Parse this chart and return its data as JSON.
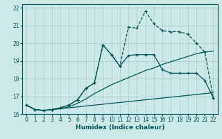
{
  "xlabel": "Humidex (Indice chaleur)",
  "bg_color": "#cce8e8",
  "grid_color": "#aacccc",
  "line_color": "#005555",
  "xlim": [
    -0.5,
    22.5
  ],
  "ylim": [
    16,
    22.2
  ],
  "xticks": [
    0,
    1,
    2,
    3,
    4,
    5,
    6,
    7,
    8,
    9,
    10,
    11,
    12,
    13,
    14,
    15,
    16,
    17,
    18,
    19,
    20,
    21,
    22
  ],
  "yticks": [
    16,
    17,
    18,
    19,
    20,
    21,
    22
  ],
  "series": [
    {
      "x": [
        0,
        1,
        2,
        3,
        4,
        5,
        6,
        7,
        8,
        9,
        10,
        11,
        12,
        13,
        14,
        15,
        16,
        17,
        18,
        19,
        20,
        21,
        22
      ],
      "y": [
        16.5,
        16.25,
        16.2,
        16.25,
        16.3,
        16.35,
        16.4,
        16.45,
        16.5,
        16.55,
        16.6,
        16.65,
        16.7,
        16.75,
        16.8,
        16.85,
        16.9,
        16.95,
        17.0,
        17.05,
        17.1,
        17.15,
        17.2
      ],
      "marker": false,
      "linestyle": "-",
      "lw": 0.9
    },
    {
      "x": [
        0,
        1,
        2,
        3,
        4,
        5,
        6,
        7,
        8,
        9,
        10,
        11,
        12,
        13,
        14,
        15,
        16,
        17,
        18,
        19,
        20,
        21,
        22
      ],
      "y": [
        16.5,
        16.25,
        16.2,
        16.25,
        16.3,
        16.4,
        16.6,
        16.85,
        17.15,
        17.4,
        17.65,
        17.85,
        18.05,
        18.25,
        18.45,
        18.6,
        18.8,
        18.95,
        19.1,
        19.25,
        19.4,
        19.5,
        19.55
      ],
      "marker": false,
      "linestyle": "-",
      "lw": 0.9
    },
    {
      "x": [
        0,
        1,
        2,
        3,
        4,
        5,
        6,
        7,
        8,
        9,
        10,
        11,
        12,
        13,
        14,
        15,
        16,
        17,
        18,
        19,
        20,
        21,
        22
      ],
      "y": [
        16.5,
        16.25,
        16.2,
        16.25,
        16.35,
        16.5,
        16.8,
        17.45,
        17.75,
        19.9,
        19.35,
        18.7,
        19.3,
        19.35,
        19.35,
        19.35,
        18.5,
        18.3,
        18.3,
        18.3,
        18.3,
        17.9,
        16.9
      ],
      "marker": true,
      "linestyle": "-",
      "lw": 0.9
    },
    {
      "x": [
        0,
        1,
        2,
        3,
        4,
        5,
        6,
        7,
        8,
        9,
        10,
        11,
        12,
        13,
        14,
        15,
        16,
        17,
        18,
        19,
        20,
        21,
        22
      ],
      "y": [
        16.5,
        16.25,
        16.2,
        16.25,
        16.35,
        16.5,
        16.8,
        17.45,
        17.75,
        19.9,
        19.35,
        18.7,
        20.9,
        20.85,
        21.8,
        21.1,
        20.7,
        20.65,
        20.65,
        20.5,
        20.0,
        19.5,
        16.9
      ],
      "marker": true,
      "linestyle": "--",
      "lw": 0.9
    }
  ]
}
